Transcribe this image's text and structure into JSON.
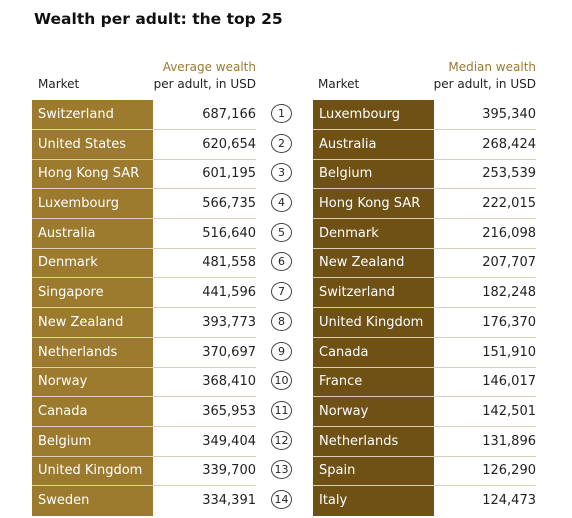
{
  "title": "Wealth per adult: the top 25",
  "left_header": {
    "market": "Market",
    "value_line1": "Average wealth",
    "value_line2": "per adult, in USD"
  },
  "right_header": {
    "market": "Market",
    "value_line1": "Median wealth",
    "value_line2": "per adult, in USD"
  },
  "colors": {
    "left_column": "#9c7a2e",
    "right_column": "#6f5116",
    "subheader": "#9a7a34"
  },
  "chart_data": {
    "type": "table",
    "title": "Wealth per adult: the top 25",
    "ranks": [
      "1",
      "2",
      "3",
      "4",
      "5",
      "6",
      "7",
      "8",
      "9",
      "10",
      "11",
      "12",
      "13",
      "14"
    ],
    "average": [
      {
        "market": "Switzerland",
        "value": "687,166"
      },
      {
        "market": "United States",
        "value": "620,654"
      },
      {
        "market": "Hong Kong SAR",
        "value": "601,195"
      },
      {
        "market": "Luxembourg",
        "value": "566,735"
      },
      {
        "market": "Australia",
        "value": "516,640"
      },
      {
        "market": "Denmark",
        "value": "481,558"
      },
      {
        "market": "Singapore",
        "value": "441,596"
      },
      {
        "market": "New Zealand",
        "value": "393,773"
      },
      {
        "market": "Netherlands",
        "value": "370,697"
      },
      {
        "market": "Norway",
        "value": "368,410"
      },
      {
        "market": "Canada",
        "value": "365,953"
      },
      {
        "market": "Belgium",
        "value": "349,404"
      },
      {
        "market": "United Kingdom",
        "value": "339,700"
      },
      {
        "market": "Sweden",
        "value": "334,391"
      }
    ],
    "median": [
      {
        "market": "Luxembourg",
        "value": "395,340"
      },
      {
        "market": "Australia",
        "value": "268,424"
      },
      {
        "market": "Belgium",
        "value": "253,539"
      },
      {
        "market": "Hong Kong SAR",
        "value": "222,015"
      },
      {
        "market": "Denmark",
        "value": "216,098"
      },
      {
        "market": "New Zealand",
        "value": "207,707"
      },
      {
        "market": "Switzerland",
        "value": "182,248"
      },
      {
        "market": "United Kingdom",
        "value": "176,370"
      },
      {
        "market": "Canada",
        "value": "151,910"
      },
      {
        "market": "France",
        "value": "146,017"
      },
      {
        "market": "Norway",
        "value": "142,501"
      },
      {
        "market": "Netherlands",
        "value": "131,896"
      },
      {
        "market": "Spain",
        "value": "126,290"
      },
      {
        "market": "Italy",
        "value": "124,473"
      }
    ]
  }
}
